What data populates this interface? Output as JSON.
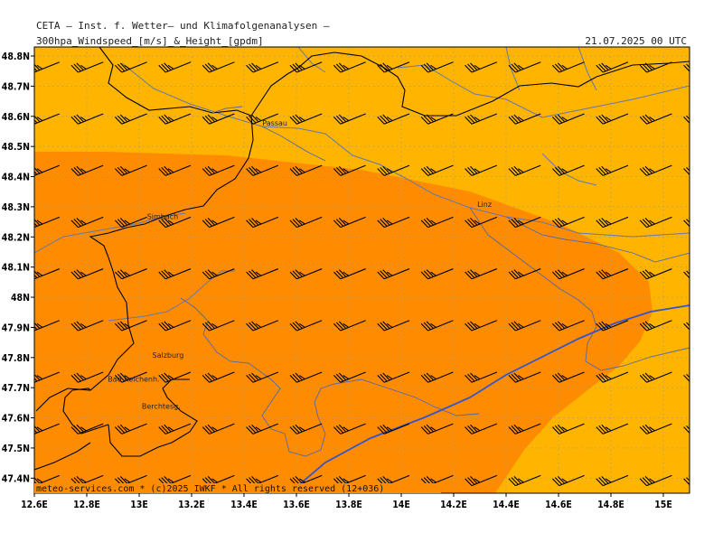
{
  "header": {
    "institute": "CETA — Inst. f. Wetter— und Klimafolgenanalysen —",
    "parameter": "300hpa_Windspeed_[m/s]_&_Height_[gpdm]",
    "datetime": "21.07.2025 00 UTC"
  },
  "footer": {
    "copyright": "meteo-services.com * (c)2025 IWKF * All rights reserved (12+036)"
  },
  "map": {
    "lon_ticks": [
      "12.6E",
      "12.8E",
      "13E",
      "13.2E",
      "13.4E",
      "13.6E",
      "13.8E",
      "14E",
      "14.2E",
      "14.4E",
      "14.6E",
      "14.8E",
      "15E"
    ],
    "lat_ticks": [
      "48.8N",
      "48.7N",
      "48.6N",
      "48.5N",
      "48.4N",
      "48.3N",
      "48.2N",
      "48.1N",
      "48N",
      "47.9N",
      "47.8N",
      "47.7N",
      "47.6N",
      "47.5N",
      "47.4N"
    ],
    "cities": [
      {
        "name": "Passau",
        "lon": 13.47,
        "lat": 48.57
      },
      {
        "name": "Linz",
        "lon": 14.29,
        "lat": 48.3
      },
      {
        "name": "Simbach",
        "lon": 13.03,
        "lat": 48.26
      },
      {
        "name": "Salzburg",
        "lon": 13.05,
        "lat": 47.8
      },
      {
        "name": "Bad Reichenh.",
        "lon": 12.88,
        "lat": 47.72
      },
      {
        "name": "Berchtesg.",
        "lon": 13.01,
        "lat": 47.63
      }
    ],
    "colors": {
      "wind_light": "#FFB400",
      "wind_strong": "#FF8C00",
      "height_contour": "#3355CC",
      "border": "#000000",
      "river": "#6677AA"
    },
    "wind": {
      "direction": "west-southwest",
      "barb_style": "pennant + full barbs"
    }
  }
}
